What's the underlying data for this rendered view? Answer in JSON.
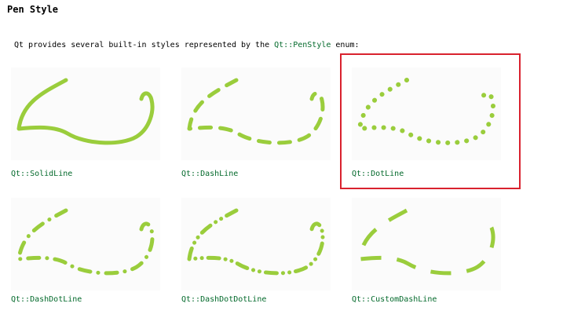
{
  "section": {
    "title": "Pen Style"
  },
  "intro": {
    "text_before": "Qt provides several built-in styles represented by the ",
    "enum_name": "Qt::PenStyle",
    "text_after": " enum:"
  },
  "styles": [
    {
      "label": "Qt::SolidLine",
      "pattern": "solid"
    },
    {
      "label": "Qt::DashLine",
      "pattern": "dash"
    },
    {
      "label": "Qt::DotLine",
      "pattern": "dot",
      "highlighted": true
    },
    {
      "label": "Qt::DashDotLine",
      "pattern": "dashdot"
    },
    {
      "label": "Qt::DashDotDotLine",
      "pattern": "dashdotdot"
    },
    {
      "label": "Qt::CustomDashLine",
      "pattern": "custom"
    }
  ],
  "colors": {
    "stroke": "#9acd3c",
    "link": "#046a2c",
    "highlight": "#d9222e"
  }
}
